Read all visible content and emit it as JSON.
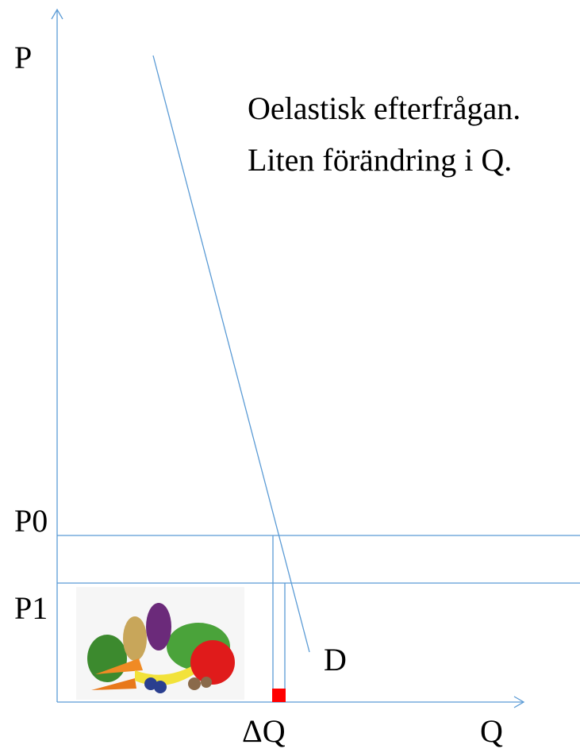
{
  "axes": {
    "y_label": "P",
    "x_label": "Q"
  },
  "price_levels": {
    "p0": "P0",
    "p1": "P1"
  },
  "curve_label": "D",
  "delta_label": "ΔQ",
  "annotation": {
    "line1": "Oelastisk efterfrågan.",
    "line2": "Liten förändring i Q."
  }
}
